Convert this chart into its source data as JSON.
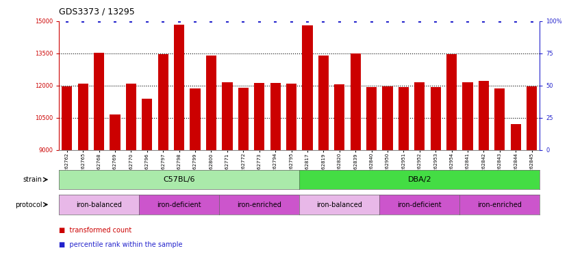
{
  "title": "GDS3373 / 13295",
  "samples": [
    "GSM262762",
    "GSM262765",
    "GSM262768",
    "GSM262769",
    "GSM262770",
    "GSM262796",
    "GSM262797",
    "GSM262798",
    "GSM262799",
    "GSM262800",
    "GSM262771",
    "GSM262772",
    "GSM262773",
    "GSM262794",
    "GSM262795",
    "GSM262817",
    "GSM262819",
    "GSM262820",
    "GSM262839",
    "GSM262840",
    "GSM262950",
    "GSM262951",
    "GSM262952",
    "GSM262953",
    "GSM262954",
    "GSM262841",
    "GSM262842",
    "GSM262843",
    "GSM262844",
    "GSM262845"
  ],
  "bar_values": [
    11950,
    12100,
    13520,
    10650,
    12080,
    11370,
    13450,
    14820,
    11850,
    13400,
    12150,
    11900,
    12120,
    12120,
    12080,
    14800,
    13400,
    12060,
    13500,
    11940,
    11950,
    11930,
    12160,
    11940,
    13460,
    12160,
    12200,
    11870,
    10200,
    11950
  ],
  "bar_color": "#cc0000",
  "dot_color": "#2222cc",
  "ylim_left": [
    9000,
    15000
  ],
  "ylim_right": [
    0,
    100
  ],
  "yticks_left": [
    9000,
    10500,
    12000,
    13500,
    15000
  ],
  "yticks_right": [
    0,
    25,
    50,
    75,
    100
  ],
  "grid_values": [
    10500,
    12000,
    13500
  ],
  "strain_groups": [
    {
      "label": "C57BL/6",
      "start": 0,
      "end": 15,
      "color": "#aaeaaa"
    },
    {
      "label": "DBA/2",
      "start": 15,
      "end": 30,
      "color": "#44dd44"
    }
  ],
  "protocol_groups": [
    {
      "label": "iron-balanced",
      "start": 0,
      "end": 5,
      "color": "#e8b8e8"
    },
    {
      "label": "iron-deficient",
      "start": 5,
      "end": 10,
      "color": "#cc55cc"
    },
    {
      "label": "iron-enriched",
      "start": 10,
      "end": 15,
      "color": "#cc55cc"
    },
    {
      "label": "iron-balanced",
      "start": 15,
      "end": 20,
      "color": "#e8b8e8"
    },
    {
      "label": "iron-deficient",
      "start": 20,
      "end": 25,
      "color": "#cc55cc"
    },
    {
      "label": "iron-enriched",
      "start": 25,
      "end": 30,
      "color": "#cc55cc"
    }
  ],
  "background_color": "#ffffff",
  "title_fontsize": 9,
  "tick_fontsize": 6,
  "label_fontsize": 7
}
